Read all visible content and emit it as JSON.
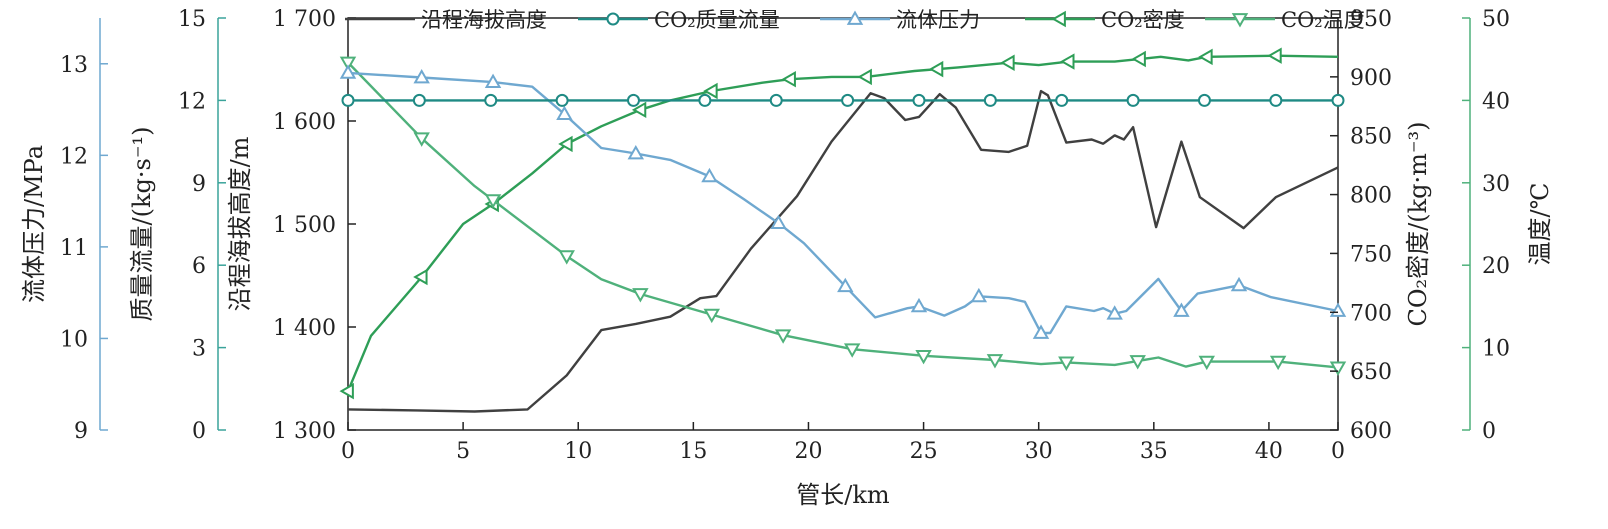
{
  "chart_data": {
    "type": "line",
    "xlabel": "管长/km",
    "xlim": [
      0,
      43
    ],
    "x_ticks": [
      "0",
      "5",
      "10",
      "15",
      "20",
      "25",
      "30",
      "35",
      "40",
      "0"
    ],
    "axes": {
      "pressure": {
        "label": "流体压力/MPa",
        "range": [
          9,
          13.5
        ],
        "ticks": [
          9,
          10,
          11,
          12,
          13
        ],
        "color": "#6fa8d0"
      },
      "mass_flow": {
        "label": "质量流量/(kg·s⁻¹)",
        "range": [
          0,
          15
        ],
        "ticks": [
          0,
          3,
          6,
          9,
          12,
          15
        ],
        "color": "#3aa39a"
      },
      "elevation": {
        "label": "沿程海拔高度/m",
        "range": [
          1300,
          1700
        ],
        "ticks": [
          1300,
          1400,
          1500,
          1600,
          1700
        ],
        "tick_labels": [
          "1 300",
          "1 400",
          "1 500",
          "1 600",
          "1 700"
        ],
        "color": "#444444"
      },
      "density": {
        "label": "CO₂密度/(kg·m⁻³)",
        "range": [
          600,
          950
        ],
        "ticks": [
          600,
          650,
          700,
          750,
          800,
          850,
          900,
          950
        ],
        "color": "#2e9e57"
      },
      "temperature": {
        "label": "温度/℃",
        "range": [
          0,
          50
        ],
        "ticks": [
          0,
          10,
          20,
          30,
          40,
          50
        ],
        "color": "#4fb17b"
      }
    },
    "series": [
      {
        "name": "沿程海拔高度",
        "axis": "elevation",
        "color": "#404040",
        "marker": "none",
        "x": [
          0,
          3,
          5.5,
          7.8,
          9.5,
          11,
          12.5,
          14,
          15.3,
          16,
          17.5,
          19.5,
          21,
          22.7,
          23.3,
          24.2,
          24.8,
          25.7,
          26.4,
          27.5,
          28.7,
          29.5,
          30.1,
          30.4,
          31.2,
          32.3,
          32.8,
          33.3,
          33.7,
          34.1,
          35.1,
          36.2,
          37,
          38.9,
          40.3,
          43
        ],
        "y": [
          1320,
          1319,
          1318,
          1320,
          1353,
          1397,
          1403,
          1410,
          1428,
          1430,
          1476,
          1527,
          1580,
          1627,
          1622,
          1601,
          1604,
          1626,
          1613,
          1572,
          1570,
          1576,
          1629,
          1625,
          1579,
          1582,
          1578,
          1586,
          1582,
          1594,
          1497,
          1580,
          1526,
          1496,
          1526,
          1555
        ]
      },
      {
        "name": "CO₂质量流量",
        "axis": "mass_flow",
        "color": "#1f8a84",
        "marker": "circle",
        "x": [
          0,
          3.1,
          6.2,
          9.3,
          12.4,
          15.5,
          18.6,
          21.7,
          24.8,
          27.9,
          31,
          34.1,
          37.2,
          40.3,
          43
        ],
        "y": [
          12,
          12,
          12,
          12,
          12,
          12,
          12,
          12,
          12,
          12,
          12,
          12,
          12,
          12,
          12
        ],
        "marker_every": 1
      },
      {
        "name": "流体压力",
        "axis": "pressure",
        "color": "#6fa8d0",
        "marker": "triangle-up",
        "x": [
          0,
          3.2,
          6.3,
          8,
          9.4,
          11,
          12.5,
          14,
          15.7,
          17.2,
          18.7,
          19.8,
          21.6,
          22.9,
          24.3,
          24.8,
          25.9,
          26.8,
          27.4,
          28.7,
          29.4,
          30.1,
          30.5,
          31.2,
          32.4,
          32.8,
          33.3,
          33.8,
          35.2,
          36.2,
          36.9,
          38.7,
          40.1,
          43
        ],
        "y": [
          12.9,
          12.85,
          12.8,
          12.75,
          12.45,
          12.08,
          12.02,
          11.95,
          11.77,
          11.52,
          11.26,
          11.04,
          10.57,
          10.23,
          10.33,
          10.35,
          10.25,
          10.35,
          10.46,
          10.44,
          10.4,
          10.06,
          10.06,
          10.35,
          10.3,
          10.33,
          10.27,
          10.3,
          10.65,
          10.3,
          10.49,
          10.58,
          10.45,
          10.3
        ],
        "marker_at": [
          0,
          3.2,
          6.3,
          9.4,
          12.5,
          15.7,
          18.7,
          21.6,
          24.8,
          27.4,
          30.1,
          33.3,
          36.2,
          38.7,
          43
        ]
      },
      {
        "name": "CO₂密度",
        "axis": "density",
        "color": "#2e9e57",
        "marker": "triangle-left",
        "x": [
          0,
          1,
          3.2,
          5,
          6.3,
          8,
          9.5,
          11,
          12.7,
          14,
          15.8,
          18,
          19.2,
          21,
          22.5,
          24.6,
          26.5,
          28.7,
          30,
          31.3,
          33.3,
          35.3,
          36.5,
          37.3,
          40.3,
          43
        ],
        "y": [
          633,
          680,
          730,
          775,
          792,
          818,
          843,
          858,
          872,
          880,
          888,
          895,
          898,
          900,
          900,
          905,
          908,
          912,
          910,
          913,
          913,
          917,
          914,
          917,
          918,
          917
        ],
        "marker_at": [
          0,
          3.2,
          6.3,
          9.5,
          12.7,
          15.8,
          19.2,
          22.5,
          25.6,
          28.7,
          31.3,
          34.4,
          37.3,
          40.3
        ]
      },
      {
        "name": "CO₂温度",
        "axis": "temperature",
        "color": "#4fb17b",
        "marker": "triangle-down",
        "x": [
          0,
          3.2,
          5.5,
          6.3,
          9.5,
          11,
          12.7,
          15.8,
          18.9,
          21.9,
          25,
          28.1,
          30.1,
          31.2,
          33.3,
          35.2,
          36.4,
          37.3,
          39,
          40.4,
          43
        ],
        "y": [
          44.6,
          35.4,
          29.6,
          27.9,
          21.1,
          18.3,
          16.5,
          14.0,
          11.5,
          9.8,
          9.0,
          8.5,
          8.0,
          8.2,
          7.9,
          8.8,
          7.7,
          8.3,
          8.3,
          8.3,
          7.6
        ],
        "marker_at": [
          0,
          3.2,
          6.3,
          9.5,
          12.7,
          15.8,
          18.9,
          21.9,
          25,
          28.1,
          31.2,
          34.3,
          37.3,
          40.4,
          43
        ]
      }
    ],
    "legend": {
      "placement": "top",
      "entries": [
        "沿程海拔高度",
        "CO₂质量流量",
        "流体压力",
        "CO₂密度",
        "CO₂温度"
      ]
    }
  }
}
